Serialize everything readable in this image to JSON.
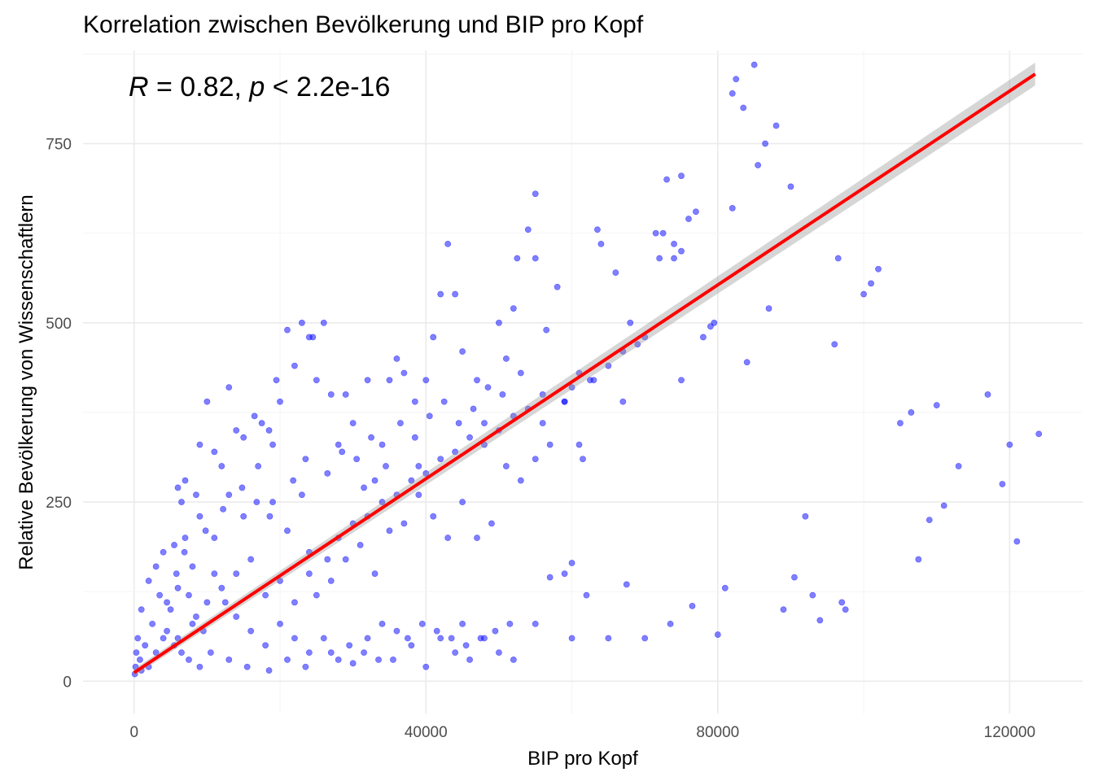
{
  "chart_data": {
    "type": "scatter",
    "title": "Korrelation zwischen Bevölkerung und BIP pro Kopf",
    "xlabel": "BIP pro Kopf",
    "ylabel": "Relative Bevölkerung von Wissenschaftlern",
    "xlim": [
      -7000,
      130000
    ],
    "ylim": [
      -45,
      880
    ],
    "x_ticks": [
      0,
      40000,
      80000,
      120000
    ],
    "y_ticks": [
      0,
      250,
      500,
      750
    ],
    "grid": true,
    "legend": "none",
    "annotation": {
      "r_symbol": "R",
      "r_text": " = 0.82, ",
      "p_symbol": "p",
      "p_text": " < 2.2e-16"
    },
    "point_color": "#0000ff",
    "fit_color": "#ff0000",
    "fit": {
      "method": "linear",
      "x": [
        0,
        123500
      ],
      "y": [
        12,
        847
      ],
      "ci_halfwidth_at_ends": [
        5,
        16
      ]
    },
    "series": [
      {
        "values": [
          [
            46000,
            30
          ],
          [
            48000,
            60
          ],
          [
            50000,
            40
          ],
          [
            45000,
            80
          ],
          [
            52000,
            30
          ],
          [
            55000,
            80
          ],
          [
            60000,
            60
          ],
          [
            62000,
            120
          ],
          [
            65000,
            60
          ],
          [
            70000,
            60
          ],
          [
            73500,
            80
          ],
          [
            76500,
            105
          ],
          [
            80000,
            65
          ],
          [
            81000,
            130
          ],
          [
            45000,
            460
          ],
          [
            47000,
            420
          ],
          [
            48000,
            360
          ],
          [
            50000,
            500
          ],
          [
            51000,
            450
          ],
          [
            52000,
            520
          ],
          [
            53000,
            430
          ],
          [
            54000,
            630
          ],
          [
            55000,
            680
          ],
          [
            56000,
            360
          ],
          [
            56500,
            490
          ],
          [
            58000,
            550
          ],
          [
            59000,
            390
          ],
          [
            60000,
            410
          ],
          [
            61000,
            330
          ],
          [
            61500,
            310
          ],
          [
            62500,
            420
          ],
          [
            63500,
            630
          ],
          [
            64000,
            610
          ],
          [
            66000,
            570
          ],
          [
            67000,
            390
          ],
          [
            68000,
            500
          ],
          [
            69000,
            470
          ],
          [
            70000,
            480
          ],
          [
            71500,
            625
          ],
          [
            72500,
            625
          ],
          [
            73000,
            700
          ],
          [
            74000,
            590
          ],
          [
            75000,
            600
          ],
          [
            75000,
            705
          ],
          [
            76000,
            645
          ],
          [
            77000,
            655
          ],
          [
            79000,
            495
          ],
          [
            79500,
            500
          ],
          [
            82000,
            660
          ],
          [
            82000,
            820
          ],
          [
            82500,
            840
          ],
          [
            83500,
            800
          ],
          [
            84000,
            445
          ],
          [
            85000,
            860
          ],
          [
            85500,
            720
          ],
          [
            86500,
            750
          ],
          [
            87000,
            520
          ],
          [
            88000,
            775
          ],
          [
            90000,
            690
          ],
          [
            55000,
            590
          ],
          [
            52500,
            590
          ],
          [
            43000,
            610
          ],
          [
            42000,
            540
          ],
          [
            44000,
            540
          ],
          [
            41000,
            480
          ],
          [
            40000,
            420
          ],
          [
            38500,
            390
          ],
          [
            39000,
            300
          ],
          [
            37000,
            430
          ],
          [
            36000,
            450
          ],
          [
            35000,
            420
          ],
          [
            34000,
            330
          ],
          [
            33000,
            280
          ],
          [
            32000,
            420
          ],
          [
            31500,
            270
          ],
          [
            30000,
            360
          ],
          [
            29000,
            400
          ],
          [
            28000,
            330
          ],
          [
            27000,
            400
          ],
          [
            26000,
            500
          ],
          [
            25000,
            420
          ],
          [
            24500,
            480
          ],
          [
            24000,
            480
          ],
          [
            23000,
            500
          ],
          [
            22000,
            440
          ],
          [
            21000,
            490
          ],
          [
            20000,
            390
          ],
          [
            19500,
            420
          ],
          [
            18500,
            350
          ],
          [
            17500,
            360
          ],
          [
            16500,
            370
          ],
          [
            15000,
            340
          ],
          [
            14000,
            350
          ],
          [
            13000,
            410
          ],
          [
            12000,
            300
          ],
          [
            11000,
            320
          ],
          [
            10000,
            390
          ],
          [
            9000,
            330
          ],
          [
            8500,
            260
          ],
          [
            7000,
            280
          ],
          [
            6500,
            250
          ],
          [
            6000,
            270
          ],
          [
            5500,
            190
          ],
          [
            4000,
            180
          ],
          [
            3000,
            160
          ],
          [
            2000,
            140
          ],
          [
            1000,
            100
          ],
          [
            500,
            60
          ],
          [
            300,
            40
          ],
          [
            200,
            20
          ],
          [
            100,
            10
          ],
          [
            800,
            30
          ],
          [
            1500,
            50
          ],
          [
            2500,
            80
          ],
          [
            3500,
            120
          ],
          [
            4500,
            70
          ],
          [
            5500,
            50
          ],
          [
            6500,
            40
          ],
          [
            7500,
            120
          ],
          [
            8500,
            90
          ],
          [
            9500,
            70
          ],
          [
            11000,
            150
          ],
          [
            12500,
            110
          ],
          [
            14000,
            90
          ],
          [
            16000,
            70
          ],
          [
            18000,
            50
          ],
          [
            20000,
            80
          ],
          [
            22000,
            60
          ],
          [
            24000,
            40
          ],
          [
            26000,
            60
          ],
          [
            28000,
            30
          ],
          [
            30000,
            25
          ],
          [
            32000,
            60
          ],
          [
            34000,
            80
          ],
          [
            36000,
            70
          ],
          [
            38000,
            50
          ],
          [
            40000,
            20
          ],
          [
            42000,
            60
          ],
          [
            44000,
            40
          ],
          [
            25000,
            120
          ],
          [
            27000,
            140
          ],
          [
            29000,
            170
          ],
          [
            31000,
            190
          ],
          [
            33000,
            150
          ],
          [
            35000,
            210
          ],
          [
            37000,
            220
          ],
          [
            39000,
            260
          ],
          [
            41000,
            230
          ],
          [
            43000,
            200
          ],
          [
            45000,
            250
          ],
          [
            47000,
            200
          ],
          [
            49000,
            220
          ],
          [
            51000,
            300
          ],
          [
            53000,
            280
          ],
          [
            55000,
            310
          ],
          [
            57000,
            330
          ],
          [
            59000,
            390
          ],
          [
            61000,
            430
          ],
          [
            63000,
            420
          ],
          [
            65000,
            440
          ],
          [
            67000,
            460
          ],
          [
            57000,
            145
          ],
          [
            59000,
            150
          ],
          [
            60000,
            165
          ],
          [
            67500,
            135
          ],
          [
            72000,
            590
          ],
          [
            74000,
            610
          ],
          [
            75000,
            420
          ],
          [
            78000,
            480
          ],
          [
            89000,
            100
          ],
          [
            90500,
            145
          ],
          [
            92000,
            230
          ],
          [
            93000,
            120
          ],
          [
            94000,
            85
          ],
          [
            96000,
            470
          ],
          [
            96500,
            590
          ],
          [
            97000,
            110
          ],
          [
            97500,
            100
          ],
          [
            100000,
            540
          ],
          [
            101000,
            555
          ],
          [
            102000,
            575
          ],
          [
            105000,
            360
          ],
          [
            106500,
            375
          ],
          [
            107500,
            170
          ],
          [
            109000,
            225
          ],
          [
            110000,
            385
          ],
          [
            111000,
            245
          ],
          [
            113000,
            300
          ],
          [
            117000,
            400
          ],
          [
            119000,
            275
          ],
          [
            120000,
            330
          ],
          [
            121000,
            195
          ],
          [
            124000,
            345
          ],
          [
            19000,
            250
          ],
          [
            21000,
            210
          ],
          [
            23000,
            260
          ],
          [
            15000,
            230
          ],
          [
            13000,
            260
          ],
          [
            17000,
            300
          ],
          [
            19000,
            330
          ],
          [
            11000,
            200
          ],
          [
            9000,
            230
          ],
          [
            7000,
            200
          ],
          [
            8000,
            160
          ],
          [
            6000,
            130
          ],
          [
            5000,
            100
          ],
          [
            4000,
            60
          ],
          [
            3000,
            40
          ],
          [
            2000,
            20
          ],
          [
            1000,
            15
          ],
          [
            4500,
            110
          ],
          [
            5800,
            150
          ],
          [
            6900,
            180
          ],
          [
            9800,
            210
          ],
          [
            12200,
            240
          ],
          [
            14800,
            270
          ],
          [
            16800,
            250
          ],
          [
            18600,
            230
          ],
          [
            21800,
            280
          ],
          [
            23500,
            310
          ],
          [
            26500,
            290
          ],
          [
            28500,
            320
          ],
          [
            30500,
            310
          ],
          [
            32500,
            340
          ],
          [
            34500,
            300
          ],
          [
            36500,
            360
          ],
          [
            38500,
            340
          ],
          [
            40500,
            370
          ],
          [
            42500,
            390
          ],
          [
            44500,
            360
          ],
          [
            46500,
            380
          ],
          [
            48500,
            410
          ],
          [
            50500,
            400
          ],
          [
            24000,
            180
          ],
          [
            26500,
            170
          ],
          [
            28000,
            200
          ],
          [
            30000,
            220
          ],
          [
            32000,
            230
          ],
          [
            34000,
            250
          ],
          [
            36000,
            260
          ],
          [
            38000,
            280
          ],
          [
            40000,
            290
          ],
          [
            42000,
            310
          ],
          [
            44000,
            320
          ],
          [
            46000,
            340
          ],
          [
            48000,
            330
          ],
          [
            50000,
            350
          ],
          [
            52000,
            370
          ],
          [
            54000,
            380
          ],
          [
            56000,
            400
          ],
          [
            18000,
            120
          ],
          [
            20000,
            140
          ],
          [
            22000,
            110
          ],
          [
            24000,
            150
          ],
          [
            14000,
            150
          ],
          [
            16000,
            170
          ],
          [
            12000,
            130
          ],
          [
            10000,
            110
          ],
          [
            8000,
            80
          ],
          [
            6000,
            60
          ],
          [
            7500,
            30
          ],
          [
            9000,
            20
          ],
          [
            10500,
            40
          ],
          [
            13000,
            30
          ],
          [
            15500,
            20
          ],
          [
            18500,
            15
          ],
          [
            21000,
            30
          ],
          [
            23500,
            20
          ],
          [
            27000,
            40
          ],
          [
            29500,
            50
          ],
          [
            31500,
            40
          ],
          [
            33500,
            30
          ],
          [
            35500,
            30
          ],
          [
            37500,
            60
          ],
          [
            39500,
            80
          ],
          [
            41500,
            70
          ],
          [
            43500,
            60
          ],
          [
            45500,
            50
          ],
          [
            47500,
            60
          ],
          [
            49500,
            70
          ],
          [
            51500,
            80
          ]
        ]
      }
    ]
  }
}
